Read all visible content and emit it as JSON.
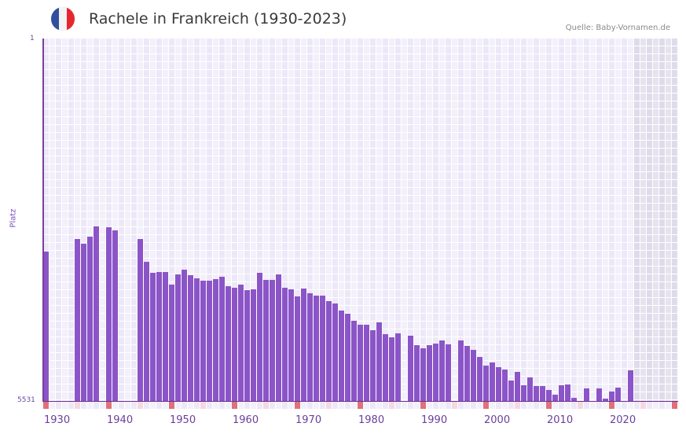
{
  "header": {
    "title": "Rachele in Frankreich (1930-2023)",
    "source": "Quelle: Baby-Vornamen.de",
    "flag_icon": "france-flag-icon",
    "flag_colors": [
      "#2f4f9f",
      "#f4f4f6",
      "#e8262e"
    ]
  },
  "axes": {
    "y_top_label": "1",
    "y_bottom_label": "5531",
    "y_title": "Platz",
    "x_ticks": [
      "1930",
      "1940",
      "1950",
      "1960",
      "1970",
      "1980",
      "1990",
      "2000",
      "2010",
      "2020"
    ]
  },
  "colors": {
    "bar": "#8b55c8",
    "decade_marker": "#e0707a",
    "half_decade_marker": "#f5d8e2",
    "axis": "#7a3f9a"
  },
  "chart_data": {
    "type": "bar",
    "title": "Rachele in Frankreich (1930-2023)",
    "xlabel": "",
    "ylabel": "Platz",
    "ylim": [
      5531,
      1
    ],
    "y_inverted": true,
    "x_range": [
      1930,
      2030
    ],
    "forecast_shaded_from": 2024,
    "grid": true,
    "legend": null,
    "categories": [
      1930,
      1931,
      1932,
      1933,
      1934,
      1935,
      1936,
      1937,
      1938,
      1939,
      1940,
      1941,
      1942,
      1943,
      1944,
      1945,
      1946,
      1947,
      1948,
      1949,
      1950,
      1951,
      1952,
      1953,
      1954,
      1955,
      1956,
      1957,
      1958,
      1959,
      1960,
      1961,
      1962,
      1963,
      1964,
      1965,
      1966,
      1967,
      1968,
      1969,
      1970,
      1971,
      1972,
      1973,
      1974,
      1975,
      1976,
      1977,
      1978,
      1979,
      1980,
      1981,
      1982,
      1983,
      1984,
      1985,
      1986,
      1987,
      1988,
      1989,
      1990,
      1991,
      1992,
      1993,
      1994,
      1995,
      1996,
      1997,
      1998,
      1999,
      2000,
      2001,
      2002,
      2003,
      2004,
      2005,
      2006,
      2007,
      2008,
      2009,
      2010,
      2011,
      2012,
      2013,
      2014,
      2015,
      2016,
      2017,
      2018,
      2019,
      2020,
      2021,
      2022,
      2023
    ],
    "values": [
      3252,
      null,
      null,
      null,
      null,
      3060,
      3131,
      3024,
      2868,
      null,
      2880,
      2928,
      null,
      null,
      null,
      3060,
      3408,
      3576,
      3564,
      3564,
      3756,
      3600,
      3528,
      3612,
      3660,
      3696,
      3696,
      3672,
      3636,
      3780,
      3804,
      3756,
      3840,
      3828,
      3576,
      3684,
      3684,
      3600,
      3804,
      3828,
      3936,
      3816,
      3888,
      3924,
      3924,
      4008,
      4044,
      4152,
      4200,
      4308,
      4368,
      4368,
      4452,
      4332,
      4512,
      4560,
      4500,
      null,
      4536,
      4680,
      4728,
      4680,
      4656,
      4608,
      4668,
      null,
      4608,
      4692,
      4752,
      4860,
      4992,
      4944,
      5016,
      5052,
      5220,
      5088,
      5292,
      5172,
      5304,
      5304,
      5364,
      5436,
      5292,
      5280,
      5484,
      null,
      5340,
      null,
      5340,
      5496,
      5388,
      5328,
      null,
      5064
    ]
  }
}
